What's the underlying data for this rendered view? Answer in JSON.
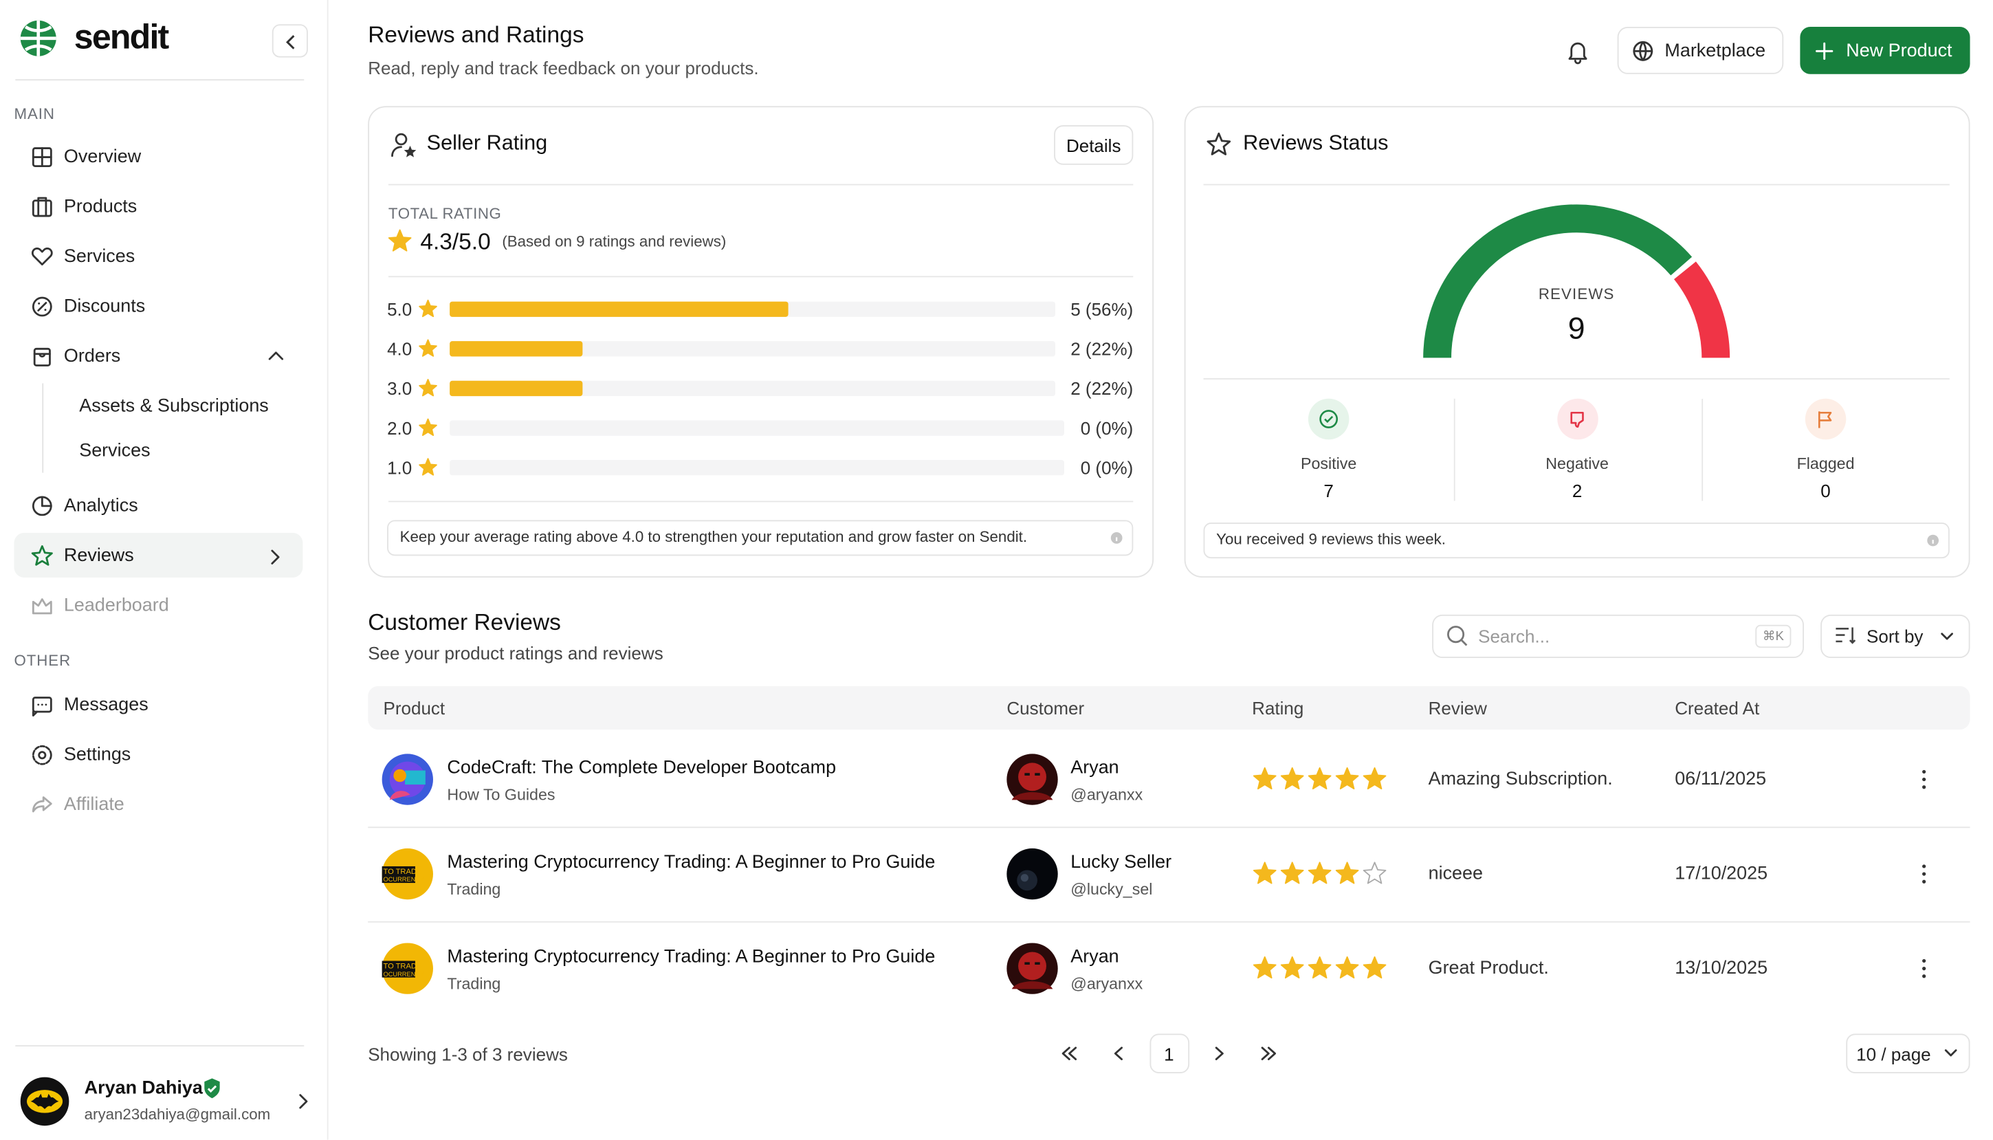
{
  "brand": "sendit",
  "sidebar": {
    "main_label": "MAIN",
    "main": [
      "Overview",
      "Products",
      "Services",
      "Discounts",
      "Orders"
    ],
    "orders_sub": [
      "Assets & Subscriptions",
      "Services"
    ],
    "main2": [
      "Analytics",
      "Reviews",
      "Leaderboard"
    ],
    "other_label": "OTHER",
    "other": [
      "Messages",
      "Settings",
      "Affiliate"
    ],
    "user": {
      "name": "Aryan Dahiya",
      "email": "aryan23dahiya@gmail.com"
    }
  },
  "header": {
    "title": "Reviews and Ratings",
    "subtitle": "Read, reply and track feedback on your products.",
    "marketplace": "Marketplace",
    "new_product": "New Product"
  },
  "seller_rating": {
    "title": "Seller Rating",
    "details": "Details",
    "total_label": "TOTAL RATING",
    "score": "4.3/5.0",
    "basis": "(Based on 9 ratings and reviews)",
    "rows": [
      {
        "rating": "5.0",
        "label": "5 (56%)",
        "share": 56
      },
      {
        "rating": "4.0",
        "label": "2 (22%)",
        "share": 22
      },
      {
        "rating": "3.0",
        "label": "2 (22%)",
        "share": 22
      },
      {
        "rating": "2.0",
        "label": "0 (0%)",
        "share": 0
      },
      {
        "rating": "1.0",
        "label": "0 (0%)",
        "share": 0
      }
    ],
    "tip": "Keep your average rating above 4.0 to strengthen your reputation and grow faster on Sendit."
  },
  "reviews_status": {
    "title": "Reviews Status",
    "center_label": "REVIEWS",
    "total": 9,
    "stats": [
      {
        "label": "Positive",
        "value": 7
      },
      {
        "label": "Negative",
        "value": 2
      },
      {
        "label": "Flagged",
        "value": 0
      }
    ],
    "note": "You received 9 reviews this week."
  },
  "customer_reviews": {
    "title": "Customer Reviews",
    "subtitle": "See your product ratings and reviews",
    "search_placeholder": "Search...",
    "shortcut": "⌘K",
    "sort": "Sort by",
    "columns": [
      "Product",
      "Customer",
      "Rating",
      "Review",
      "Created At"
    ],
    "rows": [
      {
        "product": "CodeCraft: The Complete Developer Bootcamp",
        "category": "How To Guides",
        "customer": "Aryan",
        "handle": "@aryanxx",
        "rating": 5,
        "review": "Amazing Subscription.",
        "created": "06/11/2025"
      },
      {
        "product": "Mastering Cryptocurrency Trading: A Beginner to Pro Guide",
        "category": "Trading",
        "customer": "Lucky Seller",
        "handle": "@lucky_sel",
        "rating": 4,
        "review": "niceee",
        "created": "17/10/2025"
      },
      {
        "product": "Mastering Cryptocurrency Trading: A Beginner to Pro Guide",
        "category": "Trading",
        "customer": "Aryan",
        "handle": "@aryanxx",
        "rating": 5,
        "review": "Great Product.",
        "created": "13/10/2025"
      }
    ],
    "showing": "Showing 1-3 of 3 reviews",
    "page": "1",
    "per_page": "10 / page"
  }
}
